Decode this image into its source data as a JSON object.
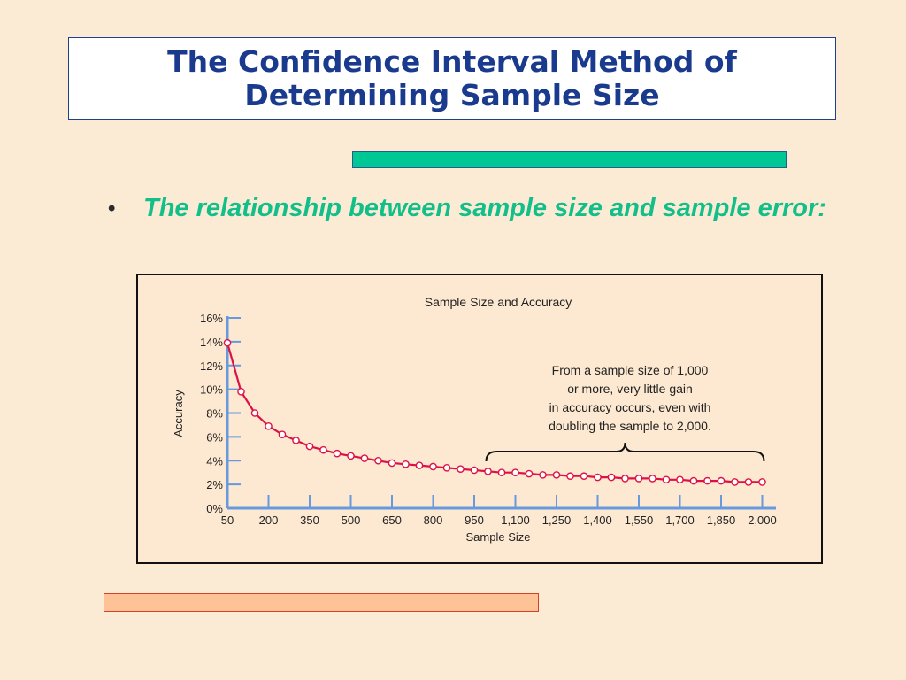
{
  "slide": {
    "title": "The Confidence Interval Method of\nDetermining Sample Size",
    "bullet_symbol": "•",
    "bullet_text": "The relationship between sample size and sample error:"
  },
  "colors": {
    "background": "#fcebd4",
    "title_text": "#1a3a8e",
    "bullet_text": "#12bf8a",
    "teal_bar": "#00c894",
    "salmon_bar": "#fdc396",
    "axis": "#6699dd",
    "series_line": "#dd1144"
  },
  "chart_data": {
    "type": "line",
    "title": "Sample Size and Accuracy",
    "xlabel": "Sample Size",
    "ylabel": "Accuracy",
    "xlim": [
      50,
      2050
    ],
    "ylim": [
      0,
      16
    ],
    "x_ticks": [
      "50",
      "200",
      "350",
      "500",
      "650",
      "800",
      "950",
      "1,100",
      "1,250",
      "1,400",
      "1,550",
      "1,700",
      "1,850",
      "2,000"
    ],
    "y_ticks": [
      "0%",
      "2%",
      "4%",
      "6%",
      "8%",
      "10%",
      "12%",
      "14%",
      "16%"
    ],
    "annotation": "From a sample size of 1,000 or more, very little gain in accuracy occurs, even with doubling the sample to 2,000.",
    "brace_range": [
      1000,
      2000
    ],
    "series": [
      {
        "x": [
          50,
          100,
          150,
          200,
          250,
          300,
          350,
          400,
          450,
          500,
          550,
          600,
          650,
          700,
          750,
          800,
          850,
          900,
          950,
          1000,
          1050,
          1100,
          1150,
          1200,
          1250,
          1300,
          1350,
          1400,
          1450,
          1500,
          1550,
          1600,
          1650,
          1700,
          1750,
          1800,
          1850,
          1900,
          1950,
          2000
        ],
        "values": [
          13.9,
          9.8,
          8.0,
          6.9,
          6.2,
          5.7,
          5.2,
          4.9,
          4.6,
          4.4,
          4.2,
          4.0,
          3.8,
          3.7,
          3.6,
          3.5,
          3.4,
          3.3,
          3.2,
          3.1,
          3.0,
          3.0,
          2.9,
          2.8,
          2.8,
          2.7,
          2.7,
          2.6,
          2.6,
          2.5,
          2.5,
          2.5,
          2.4,
          2.4,
          2.3,
          2.3,
          2.3,
          2.2,
          2.2,
          2.2
        ]
      }
    ]
  }
}
